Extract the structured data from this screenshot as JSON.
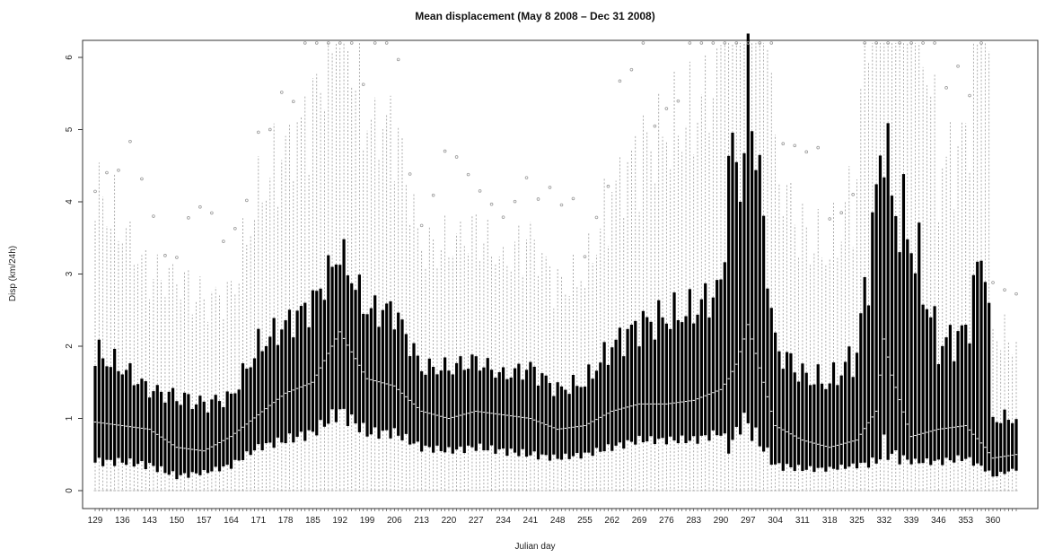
{
  "chart_data": {
    "type": "boxplot",
    "title": "Mean displacement (May 8 2008 – Dec 31 2008)",
    "xlabel": "Julian day",
    "ylabel": "Disp (km/24h)",
    "ylim": [
      0,
      6
    ],
    "yticks": [
      0,
      1,
      2,
      3,
      4,
      5,
      6
    ],
    "xticks": [
      129,
      136,
      143,
      150,
      157,
      164,
      171,
      178,
      185,
      192,
      199,
      206,
      213,
      220,
      227,
      234,
      241,
      248,
      255,
      262,
      269,
      276,
      283,
      290,
      297,
      304,
      311,
      318,
      325,
      332,
      339,
      346,
      353,
      360
    ],
    "days_range": [
      129,
      366
    ],
    "grid": false,
    "colors": {
      "box": "#000000",
      "median": "#ffffff",
      "whisker": "#9a9a9a",
      "outlier": "#9a9a9a",
      "frame": "#333333"
    },
    "series": [
      {
        "day": [
          129,
          136,
          143,
          150,
          157,
          164,
          171,
          178,
          185,
          192,
          199,
          206,
          213,
          220,
          227,
          234,
          241,
          248,
          255,
          262,
          269,
          276,
          283,
          290,
          292,
          294,
          296,
          297,
          304,
          311,
          318,
          325,
          330,
          332,
          334,
          339,
          346,
          353,
          358,
          360,
          366
        ],
        "median": [
          0.95,
          0.9,
          0.85,
          0.6,
          0.55,
          0.75,
          1.05,
          1.35,
          1.5,
          2.2,
          1.55,
          1.45,
          1.1,
          1.0,
          1.1,
          1.05,
          1.0,
          0.85,
          0.9,
          1.1,
          1.2,
          1.2,
          1.25,
          1.4,
          1.55,
          1.75,
          2.1,
          2.3,
          0.9,
          0.7,
          0.6,
          0.7,
          1.1,
          2.1,
          1.6,
          0.75,
          0.85,
          0.9,
          0.6,
          0.45,
          0.5
        ],
        "box_top": [
          1.9,
          1.7,
          1.4,
          1.3,
          1.2,
          1.3,
          2.0,
          2.3,
          2.6,
          3.3,
          2.5,
          2.5,
          1.7,
          1.7,
          1.8,
          1.6,
          1.7,
          1.4,
          1.5,
          2.0,
          2.3,
          2.4,
          2.5,
          2.8,
          4.5,
          4.6,
          4.4,
          5.9,
          2.0,
          1.6,
          1.5,
          1.9,
          4.0,
          5.1,
          4.0,
          3.5,
          2.0,
          2.2,
          3.5,
          1.0,
          1.0
        ],
        "box_bottom": [
          0.4,
          0.4,
          0.35,
          0.2,
          0.25,
          0.35,
          0.6,
          0.7,
          0.8,
          1.1,
          0.8,
          0.8,
          0.6,
          0.55,
          0.6,
          0.55,
          0.5,
          0.45,
          0.5,
          0.6,
          0.7,
          0.7,
          0.7,
          0.8,
          0.6,
          0.8,
          1.0,
          0.9,
          0.35,
          0.3,
          0.3,
          0.35,
          0.4,
          0.6,
          0.5,
          0.4,
          0.4,
          0.45,
          0.3,
          0.2,
          0.3
        ]
      }
    ]
  }
}
